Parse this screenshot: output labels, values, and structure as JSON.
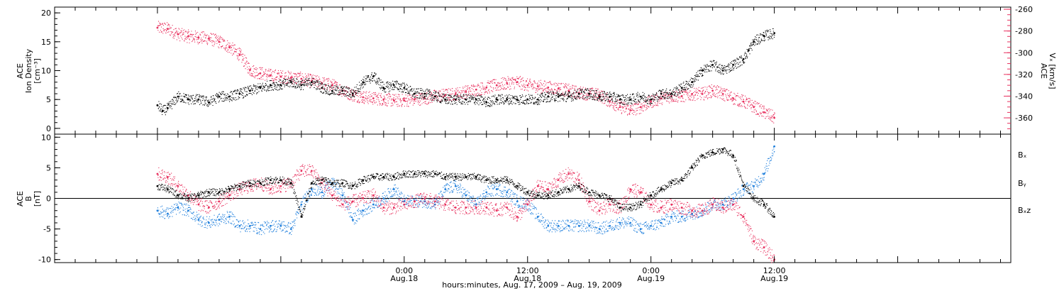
{
  "colors": {
    "black": "#000000",
    "magenta": "#e8305e",
    "blue": "#1f7fdc"
  },
  "chart_data": [
    {
      "type": "scatter",
      "panel": "ion-density-and-velocity",
      "ylabel_left_lines": [
        "ACE",
        "Ion Density",
        "[cm⁻³]"
      ],
      "ylabel_right_lines": [
        "ACE",
        "Vₓ [km/s]"
      ],
      "ylim_left": [
        -1,
        21
      ],
      "ylim_right": [
        -375,
        -258
      ],
      "yticks_left": [
        0,
        5,
        10,
        15,
        20
      ],
      "yticks_right": [
        -260,
        -280,
        -300,
        -320,
        -340,
        -360
      ],
      "grid": false,
      "series": [
        {
          "axis": "left",
          "color": "#000000",
          "x": [
            -24,
            -23.5,
            -23,
            -22,
            -21,
            -20,
            -19,
            -18,
            -17,
            -16,
            -15,
            -14,
            -13,
            -12,
            -11,
            -10,
            -9,
            -8,
            -7,
            -6,
            -5,
            -4,
            -3,
            -2,
            -1,
            0,
            1,
            2,
            3,
            4,
            5,
            6,
            7,
            8,
            9,
            10,
            11,
            12,
            13,
            14,
            15,
            16,
            17,
            18,
            19,
            20,
            21,
            22,
            23,
            24,
            25,
            26,
            27,
            28,
            29,
            30,
            31,
            32,
            33,
            33.5,
            34,
            35,
            36
          ],
          "y": [
            4,
            3,
            3.5,
            5.5,
            5,
            5,
            4.5,
            5.5,
            5.5,
            6,
            6.5,
            7,
            7.5,
            7.5,
            8,
            7.5,
            8,
            7,
            6.5,
            6.5,
            6,
            8,
            9,
            7,
            7.5,
            7,
            6,
            6,
            5.5,
            5,
            5,
            5,
            5,
            4.5,
            5,
            5,
            5,
            5,
            5,
            5.5,
            5.5,
            5.5,
            6,
            6,
            5.5,
            5.5,
            5,
            5,
            5.5,
            5,
            6,
            6,
            7,
            8,
            10,
            11,
            10,
            11,
            12,
            13.5,
            15,
            16,
            16.5
          ]
        },
        {
          "axis": "right",
          "color": "#e8305e",
          "x": [
            -24,
            -23,
            -22,
            -21,
            -20,
            -19,
            -18,
            -17,
            -16,
            -15,
            -14,
            -13,
            -12,
            -11,
            -10,
            -9,
            -8,
            -7,
            -6,
            -5,
            -4,
            -3,
            -2,
            -1,
            0,
            1,
            2,
            3,
            4,
            5,
            6,
            7,
            8,
            9,
            10,
            11,
            12,
            13,
            14,
            15,
            16,
            17,
            18,
            19,
            20,
            21,
            22,
            23,
            24,
            25,
            26,
            27,
            28,
            29,
            30,
            31,
            32,
            33,
            34,
            35,
            36
          ],
          "y": [
            -277,
            -278,
            -283,
            -285,
            -286,
            -287,
            -290,
            -295,
            -302,
            -316,
            -319,
            -321,
            -322,
            -323,
            -324,
            -326,
            -328,
            -330,
            -335,
            -339,
            -341,
            -342,
            -343,
            -344,
            -344,
            -343,
            -342,
            -340,
            -339,
            -338,
            -336,
            -334,
            -332,
            -330,
            -328,
            -327,
            -330,
            -331,
            -332,
            -333,
            -335,
            -337,
            -338,
            -339,
            -345,
            -350,
            -353,
            -350,
            -345,
            -342,
            -340,
            -340,
            -338,
            -338,
            -335,
            -338,
            -342,
            -345,
            -350,
            -355,
            -360
          ]
        }
      ]
    },
    {
      "type": "scatter",
      "panel": "magnetic-field",
      "ylabel_left_lines": [
        "ACE",
        "B",
        "[nT]"
      ],
      "ylim": [
        -10.5,
        10.5
      ],
      "yticks": [
        -10,
        -5,
        0,
        5,
        10
      ],
      "zero_line": true,
      "grid": false,
      "legend_position": "right",
      "legend": [
        {
          "label": "Bₓ",
          "color": "#000000"
        },
        {
          "label": "Bᵧ",
          "color": "#1f7fdc"
        },
        {
          "label": "Bₓz",
          "color": "#e8305e"
        }
      ],
      "series": [
        {
          "name": "Bₓ",
          "color": "#000000",
          "x": [
            -24,
            -23,
            -22,
            -21,
            -20,
            -19,
            -18,
            -17,
            -16,
            -15,
            -14,
            -13,
            -12,
            -11,
            -10,
            -9,
            -8,
            -7,
            -6,
            -5,
            -4,
            -3,
            -2,
            -1,
            0,
            1,
            2,
            3,
            4,
            5,
            6,
            7,
            8,
            9,
            10,
            11,
            12,
            13,
            14,
            15,
            16,
            17,
            18,
            19,
            20,
            21,
            22,
            23,
            24,
            25,
            26,
            27,
            28,
            29,
            30,
            31,
            32,
            33,
            34,
            35,
            36
          ],
          "y": [
            2,
            1.5,
            0.5,
            0,
            0.5,
            1,
            1,
            1.5,
            2,
            2.5,
            2.5,
            3,
            3,
            2.5,
            -3,
            2.5,
            3,
            2.5,
            2.5,
            2,
            3,
            3.5,
            3.5,
            3.5,
            4,
            4,
            4,
            4,
            3.5,
            3.5,
            3.5,
            3.5,
            3,
            3,
            3,
            2,
            1,
            0.5,
            0.5,
            1,
            1.5,
            2,
            1,
            0.5,
            0,
            -1.5,
            -1.5,
            -1,
            0.5,
            1.5,
            2.5,
            3,
            5,
            7,
            7.5,
            8,
            7,
            2,
            0,
            -1,
            -3
          ]
        },
        {
          "name": "Bᵧ",
          "color": "#1f7fdc",
          "x": [
            -24,
            -23,
            -22,
            -21,
            -20,
            -19,
            -18,
            -17,
            -16,
            -15,
            -14,
            -13,
            -12,
            -11,
            -10,
            -9,
            -8,
            -7,
            -6,
            -5,
            -4,
            -3,
            -2,
            -1,
            0,
            1,
            2,
            3,
            4,
            5,
            6,
            7,
            8,
            9,
            10,
            11,
            12,
            13,
            14,
            15,
            16,
            17,
            18,
            19,
            20,
            21,
            22,
            23,
            24,
            25,
            26,
            27,
            28,
            29,
            30,
            31,
            32,
            33,
            34,
            35,
            36
          ],
          "y": [
            -2,
            -2.5,
            -1.5,
            -2,
            -3.5,
            -4,
            -3.5,
            -3,
            -4.5,
            -4.5,
            -5,
            -4.5,
            -4.5,
            -5,
            -1,
            1.5,
            1,
            2.5,
            0.5,
            -3.5,
            -2,
            -1,
            0,
            1.5,
            -0.5,
            -0.5,
            -0.5,
            -1,
            1.5,
            2,
            0.5,
            -1,
            1,
            1.5,
            1,
            -0.5,
            -1,
            -3,
            -4.5,
            -4.5,
            -4.5,
            -4.5,
            -4.5,
            -5,
            -4.5,
            -4,
            -4,
            -5,
            -4.5,
            -4,
            -3,
            -3,
            -2.5,
            -2,
            -1,
            -1,
            0,
            1.5,
            2,
            4,
            8.5
          ]
        },
        {
          "name": "Bₓz",
          "color": "#e8305e",
          "x": [
            -24,
            -23,
            -22,
            -21,
            -20,
            -19,
            -18,
            -17,
            -16,
            -15,
            -14,
            -13,
            -12,
            -11,
            -10,
            -9,
            -8,
            -7,
            -6,
            -5,
            -4,
            -3,
            -2,
            -1,
            0,
            1,
            2,
            3,
            4,
            5,
            6,
            7,
            8,
            9,
            10,
            11,
            12,
            13,
            14,
            15,
            16,
            17,
            18,
            19,
            20,
            21,
            22,
            23,
            24,
            25,
            26,
            27,
            28,
            29,
            30,
            31,
            32,
            33,
            34,
            35,
            36
          ],
          "y": [
            4,
            3.5,
            2,
            0.5,
            -1,
            -1.5,
            -0.5,
            0.5,
            1.5,
            2,
            2.5,
            1.5,
            2,
            2.5,
            4.5,
            4.5,
            2.5,
            0.5,
            -1,
            -0.5,
            0,
            0.5,
            -1.5,
            -1.5,
            -1,
            -0.5,
            0,
            -0.5,
            -1,
            -1.5,
            -1.5,
            -1.5,
            -1.5,
            -2,
            -1.5,
            -3,
            -1,
            2,
            1.5,
            3,
            4,
            3,
            -0.5,
            -2,
            -1,
            -1.5,
            1.5,
            1,
            -1,
            -1.5,
            -1,
            -1.5,
            -2,
            -2,
            -1,
            -1.5,
            -1,
            -3,
            -7,
            -8,
            -10
          ]
        }
      ]
    }
  ],
  "xaxis": {
    "range_hours": [
      -34,
      59
    ],
    "major_ticks": [
      {
        "hour": 0,
        "label": "0:00",
        "date": "Aug.18"
      },
      {
        "hour": 12,
        "label": "12:00",
        "date": "Aug.18"
      },
      {
        "hour": 24,
        "label": "0:00",
        "date": "Aug.19"
      },
      {
        "hour": 36,
        "label": "12:00",
        "date": "Aug.19"
      }
    ],
    "minor_step_hours": 2,
    "title": "hours:minutes, Aug. 17, 2009 – Aug. 19, 2009"
  }
}
